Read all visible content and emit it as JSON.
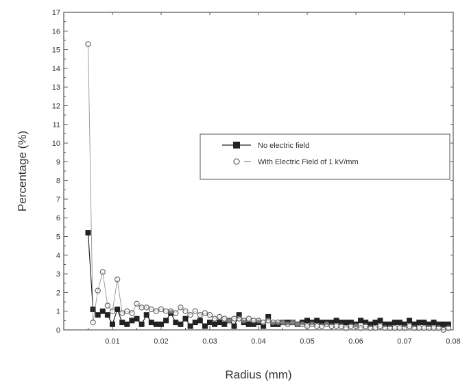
{
  "chart_data": {
    "type": "line",
    "title": "",
    "xlabel": "Radius (mm)",
    "ylabel": "Percentage (%)",
    "xlim": [
      0.0,
      0.08
    ],
    "ylim": [
      0,
      17
    ],
    "x_ticks": [
      "0.01",
      "0.02",
      "0.03",
      "0.04",
      "0.05",
      "0.06",
      "0.07",
      "0.08"
    ],
    "y_ticks": [
      "0",
      "1",
      "2",
      "3",
      "4",
      "5",
      "6",
      "7",
      "8",
      "9",
      "10",
      "11",
      "12",
      "13",
      "14",
      "15",
      "16",
      "17"
    ],
    "grid": false,
    "legend_position": "center-right",
    "series": [
      {
        "name": "No electric field",
        "marker": "filled-square",
        "color": "#222222",
        "x": [
          0.005,
          0.006,
          0.007,
          0.008,
          0.009,
          0.01,
          0.011,
          0.012,
          0.013,
          0.014,
          0.015,
          0.016,
          0.017,
          0.018,
          0.019,
          0.02,
          0.021,
          0.022,
          0.023,
          0.024,
          0.025,
          0.026,
          0.027,
          0.028,
          0.029,
          0.03,
          0.031,
          0.032,
          0.033,
          0.034,
          0.035,
          0.036,
          0.037,
          0.038,
          0.039,
          0.04,
          0.041,
          0.042,
          0.043,
          0.044,
          0.045,
          0.046,
          0.047,
          0.048,
          0.049,
          0.05,
          0.051,
          0.052,
          0.053,
          0.054,
          0.055,
          0.056,
          0.057,
          0.058,
          0.059,
          0.06,
          0.061,
          0.062,
          0.063,
          0.064,
          0.065,
          0.066,
          0.067,
          0.068,
          0.069,
          0.07,
          0.071,
          0.072,
          0.073,
          0.074,
          0.075,
          0.076,
          0.077,
          0.078,
          0.079
        ],
        "values": [
          5.2,
          1.1,
          0.8,
          1.0,
          0.8,
          0.3,
          1.1,
          0.4,
          0.3,
          0.5,
          0.6,
          0.3,
          0.8,
          0.4,
          0.3,
          0.3,
          0.5,
          0.9,
          0.4,
          0.3,
          0.6,
          0.2,
          0.4,
          0.5,
          0.2,
          0.4,
          0.3,
          0.4,
          0.3,
          0.5,
          0.2,
          0.8,
          0.4,
          0.3,
          0.3,
          0.4,
          0.2,
          0.7,
          0.3,
          0.3,
          0.4,
          0.4,
          0.4,
          0.3,
          0.4,
          0.5,
          0.4,
          0.5,
          0.4,
          0.4,
          0.4,
          0.5,
          0.4,
          0.4,
          0.4,
          0.3,
          0.5,
          0.4,
          0.3,
          0.4,
          0.5,
          0.3,
          0.3,
          0.4,
          0.4,
          0.3,
          0.5,
          0.3,
          0.4,
          0.4,
          0.3,
          0.4,
          0.3,
          0.3,
          0.3
        ]
      },
      {
        "name": "With Electric Field of 1 kV/mm",
        "marker": "open-circle",
        "color": "#666666",
        "x": [
          0.005,
          0.006,
          0.007,
          0.008,
          0.009,
          0.01,
          0.011,
          0.012,
          0.013,
          0.014,
          0.015,
          0.016,
          0.017,
          0.018,
          0.019,
          0.02,
          0.021,
          0.022,
          0.023,
          0.024,
          0.025,
          0.026,
          0.027,
          0.028,
          0.029,
          0.03,
          0.031,
          0.032,
          0.033,
          0.034,
          0.035,
          0.036,
          0.037,
          0.038,
          0.039,
          0.04,
          0.041,
          0.042,
          0.043,
          0.044,
          0.045,
          0.046,
          0.047,
          0.048,
          0.049,
          0.05,
          0.051,
          0.052,
          0.053,
          0.054,
          0.055,
          0.056,
          0.057,
          0.058,
          0.059,
          0.06,
          0.061,
          0.062,
          0.063,
          0.064,
          0.065,
          0.066,
          0.067,
          0.068,
          0.069,
          0.07,
          0.071,
          0.072,
          0.073,
          0.074,
          0.075,
          0.076,
          0.077,
          0.078,
          0.079
        ],
        "values": [
          15.3,
          0.4,
          2.1,
          3.1,
          1.3,
          1.0,
          2.7,
          0.9,
          1.0,
          0.9,
          1.4,
          1.2,
          1.2,
          1.1,
          1.0,
          1.1,
          1.0,
          1.0,
          0.9,
          1.2,
          1.0,
          0.8,
          1.0,
          0.8,
          0.9,
          0.8,
          0.6,
          0.7,
          0.6,
          0.5,
          0.6,
          0.6,
          0.5,
          0.6,
          0.5,
          0.5,
          0.4,
          0.5,
          0.4,
          0.4,
          0.4,
          0.3,
          0.4,
          0.3,
          0.3,
          0.2,
          0.3,
          0.2,
          0.2,
          0.3,
          0.2,
          0.2,
          0.2,
          0.1,
          0.2,
          0.2,
          0.1,
          0.2,
          0.1,
          0.1,
          0.2,
          0.1,
          0.1,
          0.1,
          0.1,
          0.1,
          0.2,
          0.1,
          0.1,
          0.1,
          0.1,
          0.1,
          0.1,
          0.0,
          0.1
        ]
      }
    ]
  }
}
